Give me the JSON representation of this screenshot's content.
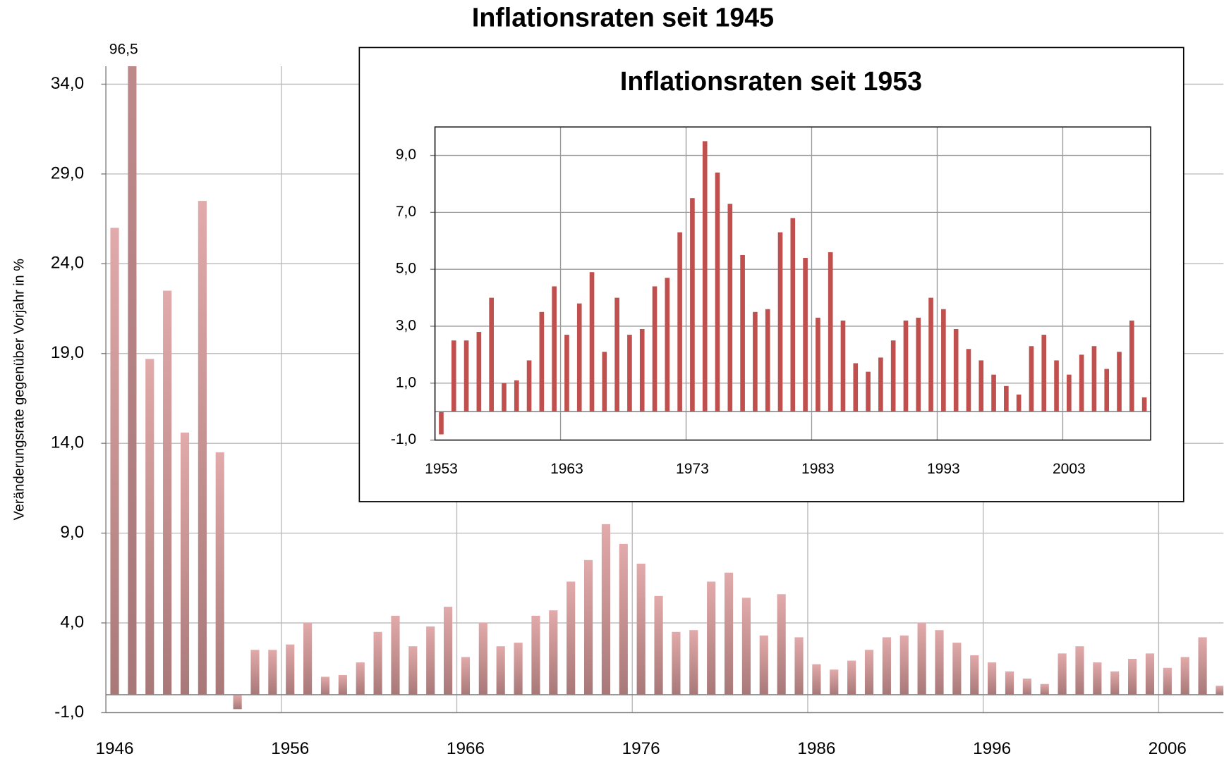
{
  "chart_data": [
    {
      "type": "bar",
      "title": "Inflationsraten seit 1945",
      "ylabel": "Veränderungsrate gegenüber Vorjahr in %",
      "categories": [
        "1946",
        null,
        null,
        null,
        null,
        null,
        null,
        null,
        null,
        null,
        "1956",
        null,
        null,
        null,
        null,
        null,
        null,
        null,
        null,
        null,
        "1966",
        null,
        null,
        null,
        null,
        null,
        null,
        null,
        null,
        null,
        "1976",
        null,
        null,
        null,
        null,
        null,
        null,
        null,
        null,
        null,
        "1986",
        null,
        null,
        null,
        null,
        null,
        null,
        null,
        null,
        null,
        "1996",
        null,
        null,
        null,
        null,
        null,
        null,
        null,
        null,
        null,
        "2006",
        null,
        null,
        null
      ],
      "values": [
        26.0,
        96.5,
        18.7,
        22.5,
        14.6,
        27.5,
        13.5,
        -0.8,
        2.5,
        2.5,
        2.8,
        4.0,
        1.0,
        1.1,
        1.8,
        3.5,
        4.4,
        2.7,
        3.8,
        4.9,
        2.1,
        4.0,
        2.7,
        2.9,
        4.4,
        4.7,
        6.3,
        7.5,
        9.5,
        8.4,
        7.3,
        5.5,
        3.5,
        3.6,
        6.3,
        6.8,
        5.4,
        3.3,
        5.6,
        3.2,
        1.7,
        1.4,
        1.9,
        2.5,
        3.2,
        3.3,
        4.0,
        3.6,
        2.9,
        2.2,
        1.8,
        1.3,
        0.9,
        0.6,
        2.3,
        2.7,
        1.8,
        1.3,
        2.0,
        2.3,
        1.5,
        2.1,
        3.2,
        0.5
      ],
      "value_labels": [
        null,
        "96,5",
        null,
        null,
        null,
        null,
        null,
        null,
        null,
        null,
        null,
        null,
        null,
        null,
        null,
        null,
        null,
        null,
        null,
        null,
        null,
        null,
        null,
        null,
        null,
        null,
        null,
        null,
        null,
        null,
        null,
        null,
        null,
        null,
        null,
        null,
        null,
        null,
        null,
        null,
        null,
        null,
        null,
        null,
        null,
        null,
        null,
        null,
        null,
        null,
        null,
        null,
        null,
        null,
        null,
        null,
        null,
        null,
        null,
        null,
        null,
        null,
        null,
        null
      ],
      "color": "#c99090",
      "ylim": [
        -1,
        35
      ],
      "yticks": [
        {
          "value": -1,
          "label": "-1,0"
        },
        {
          "value": 4,
          "label": "4,0"
        },
        {
          "value": 9,
          "label": "9,0"
        },
        {
          "value": 14,
          "label": "14,0"
        },
        {
          "value": 19,
          "label": "19,0"
        },
        {
          "value": 24,
          "label": "24,0"
        },
        {
          "value": 29,
          "label": "29,0"
        },
        {
          "value": 34,
          "label": "34,0"
        }
      ],
      "grid": true
    },
    {
      "type": "bar",
      "title": "Inflationsraten seit 1953",
      "categories": [
        "1953",
        null,
        null,
        null,
        null,
        null,
        null,
        null,
        null,
        null,
        "1963",
        null,
        null,
        null,
        null,
        null,
        null,
        null,
        null,
        null,
        "1973",
        null,
        null,
        null,
        null,
        null,
        null,
        null,
        null,
        null,
        "1983",
        null,
        null,
        null,
        null,
        null,
        null,
        null,
        null,
        null,
        "1993",
        null,
        null,
        null,
        null,
        null,
        null,
        null,
        null,
        null,
        "2003",
        null,
        null,
        null,
        null,
        null,
        null
      ],
      "values": [
        -0.8,
        2.5,
        2.5,
        2.8,
        4.0,
        1.0,
        1.1,
        1.8,
        3.5,
        4.4,
        2.7,
        3.8,
        4.9,
        2.1,
        4.0,
        2.7,
        2.9,
        4.4,
        4.7,
        6.3,
        7.5,
        9.5,
        8.4,
        7.3,
        5.5,
        3.5,
        3.6,
        6.3,
        6.8,
        5.4,
        3.3,
        5.6,
        3.2,
        1.7,
        1.4,
        1.9,
        2.5,
        3.2,
        3.3,
        4.0,
        3.6,
        2.9,
        2.2,
        1.8,
        1.3,
        0.9,
        0.6,
        2.3,
        2.7,
        1.8,
        1.3,
        2.0,
        2.3,
        1.5,
        2.1,
        3.2,
        0.5
      ],
      "color": "#c0504d",
      "ylim": [
        -1,
        10
      ],
      "yticks": [
        {
          "value": -1,
          "label": "-1,0"
        },
        {
          "value": 1,
          "label": "1,0"
        },
        {
          "value": 3,
          "label": "3,0"
        },
        {
          "value": 5,
          "label": "5,0"
        },
        {
          "value": 7,
          "label": "7,0"
        },
        {
          "value": 9,
          "label": "9,0"
        }
      ],
      "grid": true
    }
  ]
}
